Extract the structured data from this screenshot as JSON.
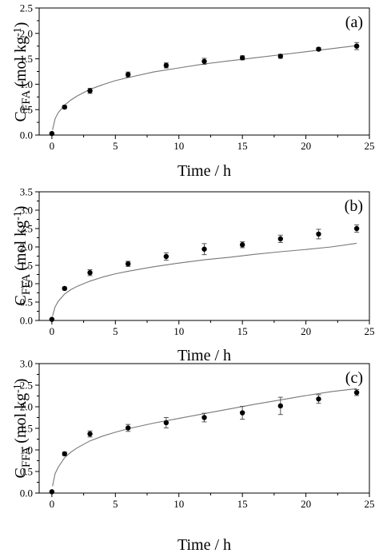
{
  "chart_data": [
    {
      "type": "scatter",
      "panel_label": "(a)",
      "xlabel": "Time / h",
      "ylabel_main": "C",
      "ylabel_sub": "FFA",
      "ylabel_unit": "(mol kg",
      "ylabel_sup": "-1",
      "ylabel_close": ")",
      "xlim": [
        -1,
        25
      ],
      "ylim": [
        0,
        2.5
      ],
      "x_ticks": [
        "0",
        "5",
        "10",
        "15",
        "20",
        "25"
      ],
      "y_ticks": [
        "0.0",
        "0.5",
        "1.0",
        "1.5",
        "2.0",
        "2.5"
      ],
      "series": [
        {
          "x": [
            0,
            1,
            3,
            6,
            9,
            12,
            15,
            18,
            21,
            24
          ],
          "y": [
            0.03,
            0.55,
            0.87,
            1.19,
            1.37,
            1.45,
            1.52,
            1.55,
            1.69,
            1.75
          ],
          "err": [
            0.01,
            0.03,
            0.05,
            0.05,
            0.05,
            0.06,
            0.04,
            0.04,
            0.03,
            0.07
          ]
        }
      ],
      "model_curve": {
        "x": [
          0.05,
          0.25,
          0.5,
          1,
          1.5,
          2,
          3,
          4,
          5,
          6,
          8,
          10,
          12,
          14,
          16,
          18,
          20,
          22,
          24
        ],
        "y": [
          0.1,
          0.32,
          0.44,
          0.59,
          0.69,
          0.77,
          0.9,
          0.99,
          1.07,
          1.13,
          1.24,
          1.32,
          1.4,
          1.46,
          1.52,
          1.58,
          1.64,
          1.7,
          1.76
        ]
      },
      "grid": false
    },
    {
      "type": "scatter",
      "panel_label": "(b)",
      "xlabel": "Time / h",
      "ylabel_main": "C",
      "ylabel_sub": "FFA",
      "ylabel_unit": "(mol kg",
      "ylabel_sup": "-1",
      "ylabel_close": ")",
      "xlim": [
        -1,
        25
      ],
      "ylim": [
        0,
        3.5
      ],
      "x_ticks": [
        "0",
        "5",
        "10",
        "15",
        "20",
        "25"
      ],
      "y_ticks": [
        "0.0",
        "0.5",
        "1.0",
        "1.5",
        "2.0",
        "2.5",
        "3.0",
        "3.5"
      ],
      "series": [
        {
          "x": [
            0,
            1,
            3,
            6,
            9,
            12,
            15,
            18,
            21,
            24
          ],
          "y": [
            0.03,
            0.87,
            1.3,
            1.54,
            1.74,
            1.94,
            2.06,
            2.22,
            2.35,
            2.5
          ],
          "err": [
            0.01,
            0.04,
            0.08,
            0.07,
            0.1,
            0.15,
            0.08,
            0.1,
            0.13,
            0.1
          ]
        }
      ],
      "model_curve": {
        "x": [
          0.05,
          0.25,
          0.5,
          1,
          1.5,
          2,
          3,
          4,
          5,
          6,
          8,
          10,
          12,
          14,
          16,
          18,
          20,
          22,
          24
        ],
        "y": [
          0.12,
          0.37,
          0.52,
          0.72,
          0.84,
          0.93,
          1.07,
          1.18,
          1.27,
          1.34,
          1.46,
          1.56,
          1.65,
          1.72,
          1.8,
          1.87,
          1.93,
          2.0,
          2.1
        ]
      },
      "grid": false
    },
    {
      "type": "scatter",
      "panel_label": "(c)",
      "xlabel": "Time / h",
      "ylabel_main": "C",
      "ylabel_sub": "FFA",
      "ylabel_unit": "(mol kg",
      "ylabel_sup": "-1",
      "ylabel_close": ")",
      "xlim": [
        -1,
        25
      ],
      "ylim": [
        0,
        3.0
      ],
      "x_ticks": [
        "0",
        "5",
        "10",
        "15",
        "20",
        "25"
      ],
      "y_ticks": [
        "0.0",
        "0.5",
        "1.0",
        "1.5",
        "2.0",
        "2.5",
        "3.0"
      ],
      "series": [
        {
          "x": [
            0,
            1,
            3,
            6,
            9,
            12,
            15,
            18,
            21,
            24
          ],
          "y": [
            0.03,
            0.91,
            1.37,
            1.51,
            1.63,
            1.75,
            1.86,
            2.02,
            2.18,
            2.33
          ],
          "err": [
            0.01,
            0.04,
            0.07,
            0.08,
            0.12,
            0.1,
            0.15,
            0.2,
            0.1,
            0.07
          ]
        }
      ],
      "model_curve": {
        "x": [
          0.05,
          0.25,
          0.5,
          1,
          1.5,
          2,
          3,
          4,
          5,
          6,
          8,
          10,
          12,
          14,
          16,
          18,
          20,
          22,
          24
        ],
        "y": [
          0.16,
          0.45,
          0.6,
          0.82,
          0.95,
          1.05,
          1.21,
          1.32,
          1.41,
          1.49,
          1.62,
          1.73,
          1.84,
          1.95,
          2.06,
          2.16,
          2.26,
          2.35,
          2.42
        ]
      },
      "grid": false
    }
  ]
}
